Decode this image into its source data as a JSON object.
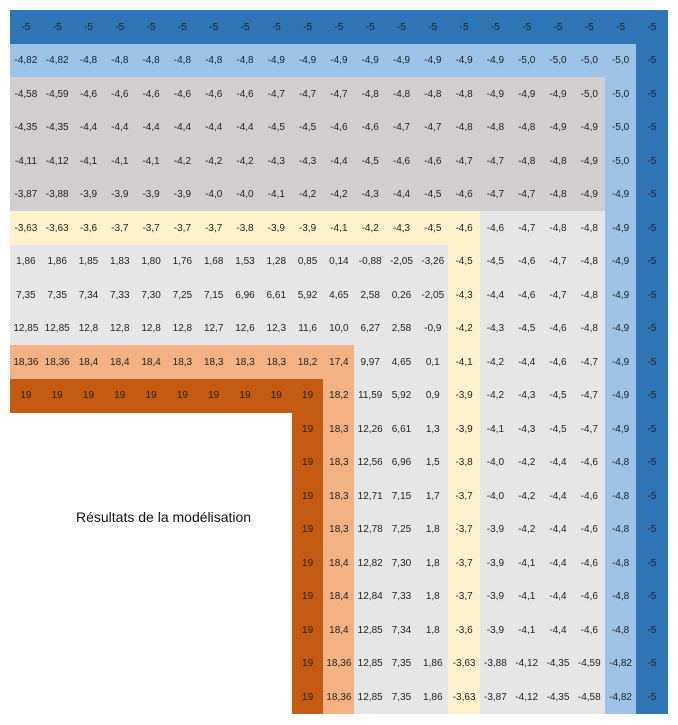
{
  "caption": "Résultats de la modélisation",
  "palette": {
    "edge": "#2e75b6",
    "border": "#9dc3e6",
    "upper": "#d0cece",
    "lower": "#e7e6e6",
    "band": "#fff2cc",
    "hot": "#f4b183",
    "source": "#c55a11"
  },
  "rows": [
    [
      "-5",
      "-5",
      "-5",
      "-5",
      "-5",
      "-5",
      "-5",
      "-5",
      "-5",
      "-5",
      "-5",
      "-5",
      "-5",
      "-5",
      "-5",
      "-5",
      "-5",
      "-5",
      "-5",
      "-5",
      "-5"
    ],
    [
      "-4,82",
      "-4,82",
      "-4,8",
      "-4,8",
      "-4,8",
      "-4,8",
      "-4,8",
      "-4,8",
      "-4,9",
      "-4,9",
      "-4,9",
      "-4,9",
      "-4,9",
      "-4,9",
      "-4,9",
      "-4,9",
      "-5,0",
      "-5,0",
      "-5,0",
      "-5,0",
      "-5"
    ],
    [
      "-4,58",
      "-4,59",
      "-4,6",
      "-4,6",
      "-4,6",
      "-4,6",
      "-4,6",
      "-4,6",
      "-4,7",
      "-4,7",
      "-4,7",
      "-4,8",
      "-4,8",
      "-4,8",
      "-4,8",
      "-4,9",
      "-4,9",
      "-4,9",
      "-5,0",
      "-5,0",
      "-5"
    ],
    [
      "-4,35",
      "-4,35",
      "-4,4",
      "-4,4",
      "-4,4",
      "-4,4",
      "-4,4",
      "-4,4",
      "-4,5",
      "-4,5",
      "-4,6",
      "-4,6",
      "-4,7",
      "-4,7",
      "-4,8",
      "-4,8",
      "-4,8",
      "-4,9",
      "-4,9",
      "-5,0",
      "-5"
    ],
    [
      "-4,11",
      "-4,12",
      "-4,1",
      "-4,1",
      "-4,1",
      "-4,2",
      "-4,2",
      "-4,2",
      "-4,3",
      "-4,3",
      "-4,4",
      "-4,5",
      "-4,6",
      "-4,6",
      "-4,7",
      "-4,7",
      "-4,8",
      "-4,8",
      "-4,9",
      "-5,0",
      "-5"
    ],
    [
      "-3,87",
      "-3,88",
      "-3,9",
      "-3,9",
      "-3,9",
      "-3,9",
      "-4,0",
      "-4,0",
      "-4,1",
      "-4,2",
      "-4,2",
      "-4,3",
      "-4,4",
      "-4,5",
      "-4,6",
      "-4,7",
      "-4,7",
      "-4,8",
      "-4,9",
      "-4,9",
      "-5"
    ],
    [
      "-3,63",
      "-3,63",
      "-3,6",
      "-3,7",
      "-3,7",
      "-3,7",
      "-3,7",
      "-3,8",
      "-3,9",
      "-3,9",
      "-4,1",
      "-4,2",
      "-4,3",
      "-4,5",
      "-4,6",
      "-4,6",
      "-4,7",
      "-4,8",
      "-4,8",
      "-4,9",
      "-5"
    ],
    [
      "1,86",
      "1,86",
      "1,85",
      "1,83",
      "1,80",
      "1,76",
      "1,68",
      "1,53",
      "1,28",
      "0,85",
      "0,14",
      "-0,88",
      "-2,05",
      "-3,26",
      "-4,5",
      "-4,5",
      "-4,6",
      "-4,7",
      "-4,8",
      "-4,9",
      "-5"
    ],
    [
      "7,35",
      "7,35",
      "7,34",
      "7,33",
      "7,30",
      "7,25",
      "7,15",
      "6,96",
      "6,61",
      "5,92",
      "4,65",
      "2,58",
      "0,26",
      "-2,05",
      "-4,3",
      "-4,4",
      "-4,6",
      "-4,7",
      "-4,8",
      "-4,9",
      "-5"
    ],
    [
      "12,85",
      "12,85",
      "12,8",
      "12,8",
      "12,8",
      "12,8",
      "12,7",
      "12,6",
      "12,3",
      "11,6",
      "10,0",
      "6,27",
      "2,58",
      "-0,9",
      "-4,2",
      "-4,3",
      "-4,5",
      "-4,6",
      "-4,8",
      "-4,9",
      "-5"
    ],
    [
      "18,36",
      "18,36",
      "18,4",
      "18,4",
      "18,4",
      "18,3",
      "18,3",
      "18,3",
      "18,3",
      "18,2",
      "17,4",
      "9,97",
      "4,65",
      "0,1",
      "-4,1",
      "-4,2",
      "-4,4",
      "-4,6",
      "-4,7",
      "-4,9",
      "-5"
    ],
    [
      "19",
      "19",
      "19",
      "19",
      "19",
      "19",
      "19",
      "19",
      "19",
      "19",
      "18,2",
      "11,59",
      "5,92",
      "0,9",
      "-3,9",
      "-4,2",
      "-4,3",
      "-4,5",
      "-4,7",
      "-4,9",
      "-5"
    ],
    [
      "19",
      "18,3",
      "12,26",
      "6,61",
      "1,3",
      "-3,9",
      "-4,1",
      "-4,3",
      "-4,5",
      "-4,7",
      "-4,9",
      "-5"
    ],
    [
      "19",
      "18,3",
      "12,56",
      "6,96",
      "1,5",
      "-3,8",
      "-4,0",
      "-4,2",
      "-4,4",
      "-4,6",
      "-4,8",
      "-5"
    ],
    [
      "19",
      "18,3",
      "12,71",
      "7,15",
      "1,7",
      "-3,7",
      "-4,0",
      "-4,2",
      "-4,4",
      "-4,6",
      "-4,8",
      "-5"
    ],
    [
      "19",
      "18,3",
      "12,78",
      "7,25",
      "1,8",
      "-3,7",
      "-3,9",
      "-4,2",
      "-4,4",
      "-4,6",
      "-4,8",
      "-5"
    ],
    [
      "19",
      "18,4",
      "12,82",
      "7,30",
      "1,8",
      "-3,7",
      "-3,9",
      "-4,1",
      "-4,4",
      "-4,6",
      "-4,8",
      "-5"
    ],
    [
      "19",
      "18,4",
      "12,84",
      "7,33",
      "1,8",
      "-3,7",
      "-3,9",
      "-4,1",
      "-4,4",
      "-4,6",
      "-4,8",
      "-5"
    ],
    [
      "19",
      "18,4",
      "12,85",
      "7,34",
      "1,8",
      "-3,6",
      "-3,9",
      "-4,1",
      "-4,4",
      "-4,6",
      "-4,8",
      "-5"
    ],
    [
      "19",
      "18,36",
      "12,85",
      "7,35",
      "1,86",
      "-3,63",
      "-3,88",
      "-4,12",
      "-4,35",
      "-4,59",
      "-4,82",
      "-5"
    ],
    [
      "19",
      "18,36",
      "12,85",
      "7,35",
      "1,86",
      "-3,63",
      "-3,87",
      "-4,12",
      "-4,35",
      "-4,58",
      "-4,82",
      "-5"
    ]
  ]
}
